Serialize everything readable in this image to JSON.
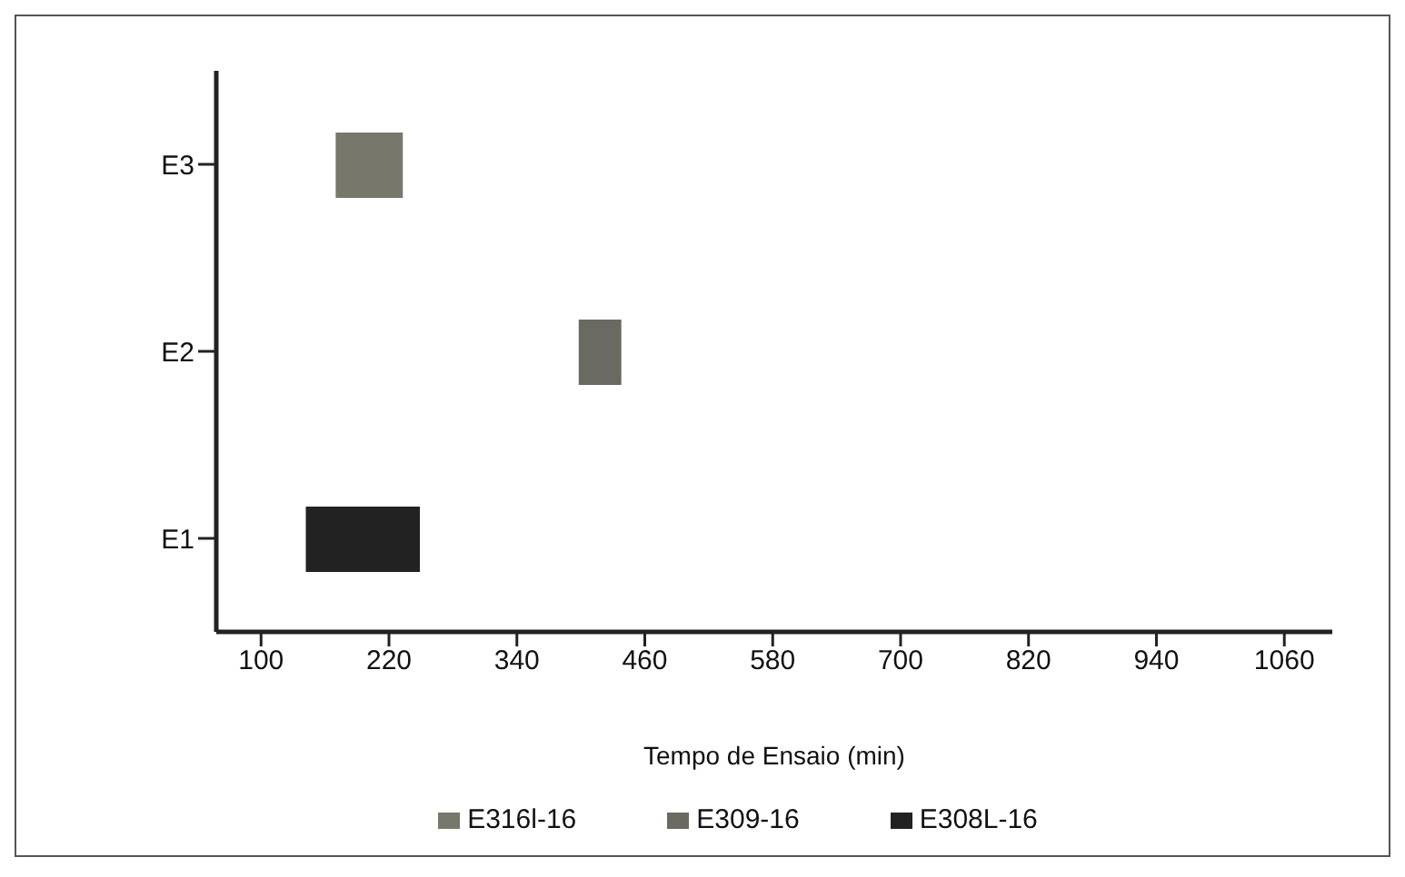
{
  "chart_data": {
    "type": "bar",
    "orientation": "horizontal",
    "xlabel": "Tempo de Ensaio (min)",
    "categories": [
      "E3",
      "E2",
      "E1"
    ],
    "series": [
      {
        "name": "E316l-16",
        "color": "#77776c",
        "values": [
          63,
          null,
          null
        ],
        "base": [
          170,
          null,
          null
        ]
      },
      {
        "name": "E309-16",
        "color": "#6a6a62",
        "values": [
          null,
          40,
          null
        ],
        "base": [
          null,
          398,
          null
        ]
      },
      {
        "name": "E308L-16",
        "color": "#222222",
        "values": [
          null,
          null,
          107
        ],
        "base": [
          null,
          null,
          142
        ]
      }
    ],
    "xlim": [
      58,
      1105
    ],
    "xticks": [
      100,
      220,
      340,
      460,
      580,
      700,
      820,
      940,
      1060
    ],
    "grid": false,
    "legend": "bottom"
  }
}
